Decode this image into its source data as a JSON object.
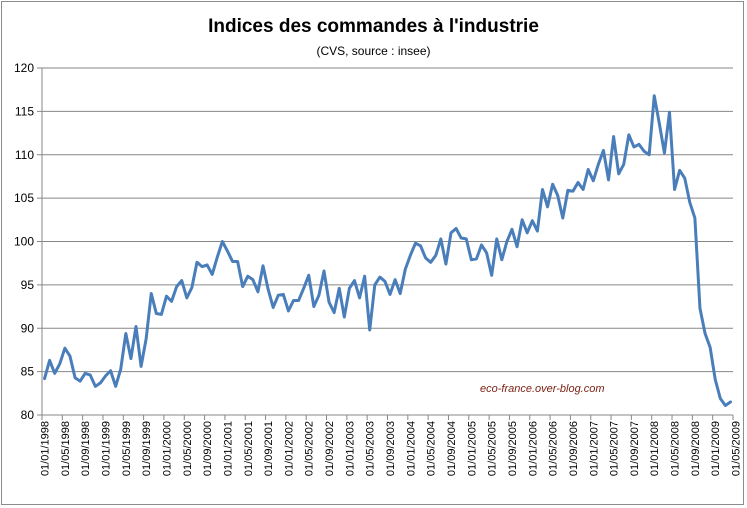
{
  "chart_data": {
    "type": "line",
    "title": "Indices des commandes  à l'industrie",
    "subtitle": "(CVS, source : insee)",
    "xlabel": "",
    "ylabel": "",
    "ylim": [
      80,
      120
    ],
    "yticks": [
      80,
      85,
      90,
      95,
      100,
      105,
      110,
      115,
      120
    ],
    "x_tick_labels": [
      "01/01/1998",
      "01/05/1998",
      "01/09/1998",
      "01/01/1999",
      "01/05/1999",
      "01/09/1999",
      "01/01/2000",
      "01/05/2000",
      "01/09/2000",
      "01/01/2001",
      "01/05/2001",
      "01/09/2001",
      "01/01/2002",
      "01/05/2002",
      "01/09/2002",
      "01/01/2003",
      "01/05/2003",
      "01/09/2003",
      "01/01/2004",
      "01/05/2004",
      "01/09/2004",
      "01/01/2005",
      "01/05/2005",
      "01/09/2005",
      "01/01/2006",
      "01/05/2006",
      "01/09/2006",
      "01/01/2007",
      "01/05/2007",
      "01/09/2007",
      "01/01/2008",
      "01/05/2008",
      "01/09/2008",
      "01/01/2009",
      "01/05/2009"
    ],
    "x_start": "1998-01",
    "x_freq": "monthly",
    "grid": "horizontal",
    "annotation": "eco-france.over-blog.com",
    "series": [
      {
        "name": "",
        "color": "#4a7ebb",
        "values": [
          84.2,
          86.3,
          84.8,
          85.9,
          87.7,
          86.8,
          84.3,
          83.9,
          84.8,
          84.6,
          83.3,
          83.7,
          84.5,
          85.1,
          83.3,
          85.3,
          89.4,
          86.5,
          90.2,
          85.6,
          88.8,
          94.0,
          91.7,
          91.6,
          93.7,
          93.1,
          94.8,
          95.5,
          93.5,
          94.7,
          97.6,
          97.1,
          97.3,
          96.2,
          98.2,
          100.0,
          98.9,
          97.7,
          97.7,
          94.8,
          96.0,
          95.6,
          94.2,
          97.2,
          94.5,
          92.4,
          93.8,
          93.9,
          92.0,
          93.2,
          93.2,
          94.6,
          96.1,
          92.5,
          93.8,
          96.6,
          93.0,
          91.8,
          94.6,
          91.3,
          94.6,
          95.5,
          93.5,
          96.0,
          89.8,
          95.0,
          95.9,
          95.4,
          93.9,
          95.6,
          94.0,
          96.8,
          98.4,
          99.8,
          99.5,
          98.1,
          97.6,
          98.4,
          100.3,
          97.4,
          101.0,
          101.5,
          100.4,
          100.3,
          97.9,
          98.0,
          99.6,
          98.7,
          96.1,
          100.3,
          97.9,
          100.0,
          101.4,
          99.4,
          102.5,
          101.0,
          102.4,
          101.2,
          106.0,
          104.0,
          106.6,
          105.3,
          102.7,
          105.9,
          105.8,
          106.8,
          106.0,
          108.3,
          107.0,
          108.9,
          110.5,
          107.1,
          112.1,
          107.8,
          108.9,
          112.3,
          110.9,
          111.2,
          110.4,
          110.0,
          116.8,
          113.6,
          110.2,
          114.9,
          106.0,
          108.2,
          107.3,
          104.5,
          102.7,
          92.3,
          89.4,
          87.8,
          84.1,
          81.9,
          81.1,
          81.5
        ]
      }
    ]
  }
}
